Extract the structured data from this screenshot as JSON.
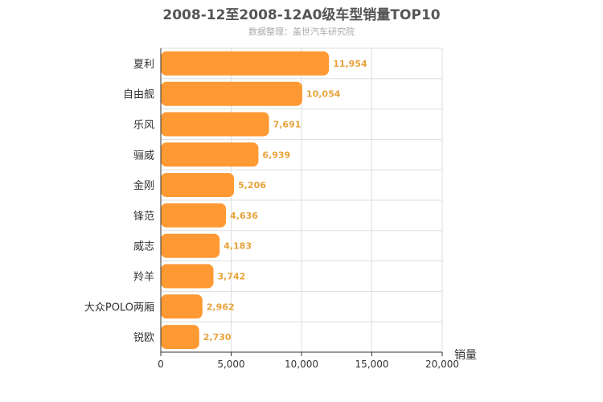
{
  "chart_data": {
    "type": "bar",
    "orientation": "horizontal",
    "title": "2008-12至2008-12A0级车型销量TOP10",
    "subtitle": "数据整理：盖世汽车研究院",
    "categories": [
      "夏利",
      "自由舰",
      "乐风",
      "骊威",
      "金刚",
      "锋范",
      "威志",
      "羚羊",
      "大众POLO两厢",
      "锐欧"
    ],
    "values": [
      11954,
      10054,
      7691,
      6939,
      5206,
      4636,
      4183,
      3742,
      2962,
      2730
    ],
    "value_labels": [
      "11,954",
      "10,054",
      "7,691",
      "6,939",
      "5,206",
      "4,636",
      "4,183",
      "3,742",
      "2,962",
      "2,730"
    ],
    "xlabel": "销量",
    "ylabel": "",
    "xlim": [
      0,
      20000
    ],
    "x_ticks": [
      0,
      5000,
      10000,
      15000,
      20000
    ],
    "x_tick_labels": [
      "0",
      "5,000",
      "10,000",
      "15,000",
      "20,000"
    ],
    "grid": true,
    "bar_color": "#ff9933",
    "label_color": "#e8a23a"
  }
}
